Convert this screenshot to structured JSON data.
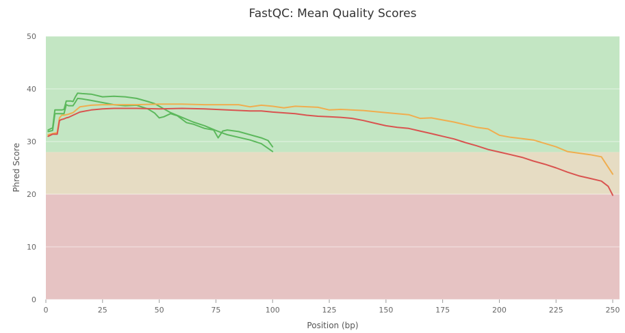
{
  "chart_data": {
    "type": "line",
    "title": "FastQC: Mean Quality Scores",
    "xlabel": "Position (bp)",
    "ylabel": "Phred Score",
    "xlim": [
      0,
      253
    ],
    "ylim": [
      0,
      50
    ],
    "x_ticks": [
      "0",
      "25",
      "50",
      "75",
      "100",
      "125",
      "150",
      "175",
      "200",
      "225",
      "250"
    ],
    "y_ticks": [
      "0",
      "10",
      "20",
      "30",
      "40",
      "50"
    ],
    "grid": true,
    "bands": [
      {
        "from": 0,
        "to": 20,
        "color": "#e6c3c3"
      },
      {
        "from": 20,
        "to": 28,
        "color": "#e6dcc3"
      },
      {
        "from": 28,
        "to": 50,
        "color": "#c3e6c3"
      }
    ],
    "series": [
      {
        "color": "#5cb85c",
        "x": [
          1,
          2,
          3,
          4,
          5,
          6,
          7,
          8,
          9,
          10,
          11,
          12,
          13,
          14,
          16,
          20,
          25,
          30,
          35,
          40,
          45,
          48,
          50,
          55,
          60,
          65,
          70,
          75,
          78,
          80,
          85,
          90,
          95,
          100
        ],
        "y": [
          32.2,
          32.4,
          32.6,
          36,
          36,
          36,
          36,
          36.1,
          37.7,
          37.7,
          37.7,
          37.6,
          38.5,
          39.2,
          39.1,
          39,
          38.5,
          38.6,
          38.5,
          38.2,
          37.6,
          37.2,
          36.7,
          35.5,
          34.6,
          33.7,
          33,
          32.1,
          31.6,
          31.3,
          30.8,
          30.3,
          29.6,
          28.1
        ]
      },
      {
        "color": "#5cb85c",
        "x": [
          1,
          2,
          3,
          4,
          5,
          6,
          7,
          8,
          9,
          10,
          11,
          12,
          13,
          14,
          16,
          20,
          25,
          30,
          35,
          40,
          45,
          48,
          50,
          52,
          55,
          58,
          62,
          65,
          70,
          74,
          76,
          78,
          80,
          85,
          90,
          95,
          98,
          100
        ],
        "y": [
          31.9,
          32,
          32.1,
          35.3,
          35.3,
          35.3,
          35.3,
          35.3,
          37,
          36.8,
          36.8,
          36.8,
          37.5,
          38.2,
          38.1,
          37.8,
          37.4,
          37,
          36.8,
          36.9,
          36.2,
          35.4,
          34.5,
          34.7,
          35.3,
          34.9,
          33.6,
          33.3,
          32.5,
          32.2,
          30.7,
          32,
          32.2,
          31.9,
          31.3,
          30.7,
          30.2,
          29
        ]
      },
      {
        "color": "#f0ad4e",
        "x": [
          1,
          3,
          5,
          6,
          7,
          8,
          10,
          12,
          15,
          20,
          25,
          30,
          40,
          50,
          60,
          70,
          80,
          85,
          90,
          95,
          100,
          105,
          110,
          120,
          125,
          130,
          140,
          150,
          160,
          165,
          170,
          180,
          190,
          195,
          200,
          205,
          215,
          225,
          230,
          240,
          245,
          250
        ],
        "y": [
          31.3,
          31.5,
          31.7,
          34.5,
          35,
          35,
          35.2,
          35.5,
          36.6,
          36.9,
          37,
          37,
          37,
          37.1,
          37.1,
          37,
          37,
          37,
          36.6,
          36.9,
          36.7,
          36.4,
          36.7,
          36.5,
          36,
          36.1,
          35.9,
          35.5,
          35.1,
          34.4,
          34.5,
          33.7,
          32.7,
          32.4,
          31.2,
          30.8,
          30.3,
          29,
          28.1,
          27.5,
          27.1,
          23.8
        ]
      },
      {
        "color": "#d9534f",
        "x": [
          1,
          2,
          3,
          4,
          5,
          6,
          7,
          8,
          9,
          10,
          12,
          15,
          20,
          25,
          30,
          40,
          50,
          60,
          70,
          80,
          90,
          95,
          100,
          110,
          115,
          120,
          125,
          130,
          135,
          140,
          145,
          150,
          155,
          160,
          165,
          170,
          175,
          180,
          185,
          190,
          195,
          200,
          205,
          210,
          215,
          220,
          225,
          230,
          235,
          240,
          245,
          248,
          250
        ],
        "y": [
          31,
          31.2,
          31.4,
          31.4,
          31.4,
          34,
          34.2,
          34.3,
          34.5,
          34.6,
          35,
          35.6,
          36,
          36.2,
          36.3,
          36.3,
          36.2,
          36.3,
          36.2,
          36,
          35.8,
          35.8,
          35.6,
          35.3,
          35,
          34.8,
          34.7,
          34.6,
          34.4,
          34,
          33.5,
          33,
          32.7,
          32.5,
          32,
          31.5,
          31,
          30.5,
          29.8,
          29.2,
          28.5,
          28,
          27.5,
          27,
          26.3,
          25.7,
          25,
          24.2,
          23.5,
          23,
          22.5,
          21.5,
          19.8
        ]
      }
    ]
  }
}
